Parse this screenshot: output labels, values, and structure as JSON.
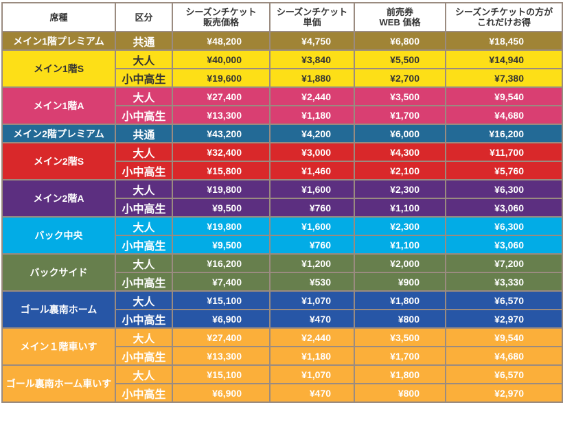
{
  "headers": [
    "席種",
    "区分",
    "シーズンチケット\n販売価格",
    "シーズンチケット\n単価",
    "前売券\nWEB 価格",
    "シーズンチケットの方が\nこれだけお得"
  ],
  "groups": [
    {
      "seat": "メイン1階プレミアム",
      "color": "#a08436",
      "text_color": "#ffffff",
      "rows": [
        {
          "category": "共通",
          "season_price": "¥48,200",
          "unit_price": "¥4,750",
          "web_price": "¥6,800",
          "savings": "¥18,450"
        }
      ]
    },
    {
      "seat": "メイン1階S",
      "color": "#fddf17",
      "text_color": "#333333",
      "rows": [
        {
          "category": "大人",
          "season_price": "¥40,000",
          "unit_price": "¥3,840",
          "web_price": "¥5,500",
          "savings": "¥14,940"
        },
        {
          "category": "小中高生",
          "season_price": "¥19,600",
          "unit_price": "¥1,880",
          "web_price": "¥2,700",
          "savings": "¥7,380"
        }
      ]
    },
    {
      "seat": "メイン1階A",
      "color": "#d93f72",
      "text_color": "#ffffff",
      "rows": [
        {
          "category": "大人",
          "season_price": "¥27,400",
          "unit_price": "¥2,440",
          "web_price": "¥3,500",
          "savings": "¥9,540"
        },
        {
          "category": "小中高生",
          "season_price": "¥13,300",
          "unit_price": "¥1,180",
          "web_price": "¥1,700",
          "savings": "¥4,680"
        }
      ]
    },
    {
      "seat": "メイン2階プレミアム",
      "color": "#236a96",
      "text_color": "#ffffff",
      "rows": [
        {
          "category": "共通",
          "season_price": "¥43,200",
          "unit_price": "¥4,200",
          "web_price": "¥6,000",
          "savings": "¥16,200"
        }
      ]
    },
    {
      "seat": "メイン2階S",
      "color": "#d9282a",
      "text_color": "#ffffff",
      "rows": [
        {
          "category": "大人",
          "season_price": "¥32,400",
          "unit_price": "¥3,000",
          "web_price": "¥4,300",
          "savings": "¥11,700"
        },
        {
          "category": "小中高生",
          "season_price": "¥15,800",
          "unit_price": "¥1,460",
          "web_price": "¥2,100",
          "savings": "¥5,760"
        }
      ]
    },
    {
      "seat": "メイン2階A",
      "color": "#5c2f80",
      "text_color": "#ffffff",
      "rows": [
        {
          "category": "大人",
          "season_price": "¥19,800",
          "unit_price": "¥1,600",
          "web_price": "¥2,300",
          "savings": "¥6,300"
        },
        {
          "category": "小中高生",
          "season_price": "¥9,500",
          "unit_price": "¥760",
          "web_price": "¥1,100",
          "savings": "¥3,060"
        }
      ]
    },
    {
      "seat": "バック中央",
      "color": "#02ace6",
      "text_color": "#ffffff",
      "rows": [
        {
          "category": "大人",
          "season_price": "¥19,800",
          "unit_price": "¥1,600",
          "web_price": "¥2,300",
          "savings": "¥6,300"
        },
        {
          "category": "小中高生",
          "season_price": "¥9,500",
          "unit_price": "¥760",
          "web_price": "¥1,100",
          "savings": "¥3,060"
        }
      ]
    },
    {
      "seat": "バックサイド",
      "color": "#677f4d",
      "text_color": "#ffffff",
      "rows": [
        {
          "category": "大人",
          "season_price": "¥16,200",
          "unit_price": "¥1,200",
          "web_price": "¥2,000",
          "savings": "¥7,200"
        },
        {
          "category": "小中高生",
          "season_price": "¥7,400",
          "unit_price": "¥530",
          "web_price": "¥900",
          "savings": "¥3,330"
        }
      ]
    },
    {
      "seat": "ゴール裏南ホーム",
      "color": "#2756a6",
      "text_color": "#ffffff",
      "rows": [
        {
          "category": "大人",
          "season_price": "¥15,100",
          "unit_price": "¥1,070",
          "web_price": "¥1,800",
          "savings": "¥6,570"
        },
        {
          "category": "小中高生",
          "season_price": "¥6,900",
          "unit_price": "¥470",
          "web_price": "¥800",
          "savings": "¥2,970"
        }
      ]
    },
    {
      "seat": "メイン１階車いす",
      "color": "#fbaf3a",
      "text_color": "#ffffff",
      "rows": [
        {
          "category": "大人",
          "season_price": "¥27,400",
          "unit_price": "¥2,440",
          "web_price": "¥3,500",
          "savings": "¥9,540"
        },
        {
          "category": "小中高生",
          "season_price": "¥13,300",
          "unit_price": "¥1,180",
          "web_price": "¥1,700",
          "savings": "¥4,680"
        }
      ]
    },
    {
      "seat": "ゴール裏南ホーム車いす",
      "color": "#fbaf3a",
      "text_color": "#ffffff",
      "rows": [
        {
          "category": "大人",
          "season_price": "¥15,100",
          "unit_price": "¥1,070",
          "web_price": "¥1,800",
          "savings": "¥6,570"
        },
        {
          "category": "小中高生",
          "season_price": "¥6,900",
          "unit_price": "¥470",
          "web_price": "¥800",
          "savings": "¥2,970"
        }
      ]
    }
  ]
}
